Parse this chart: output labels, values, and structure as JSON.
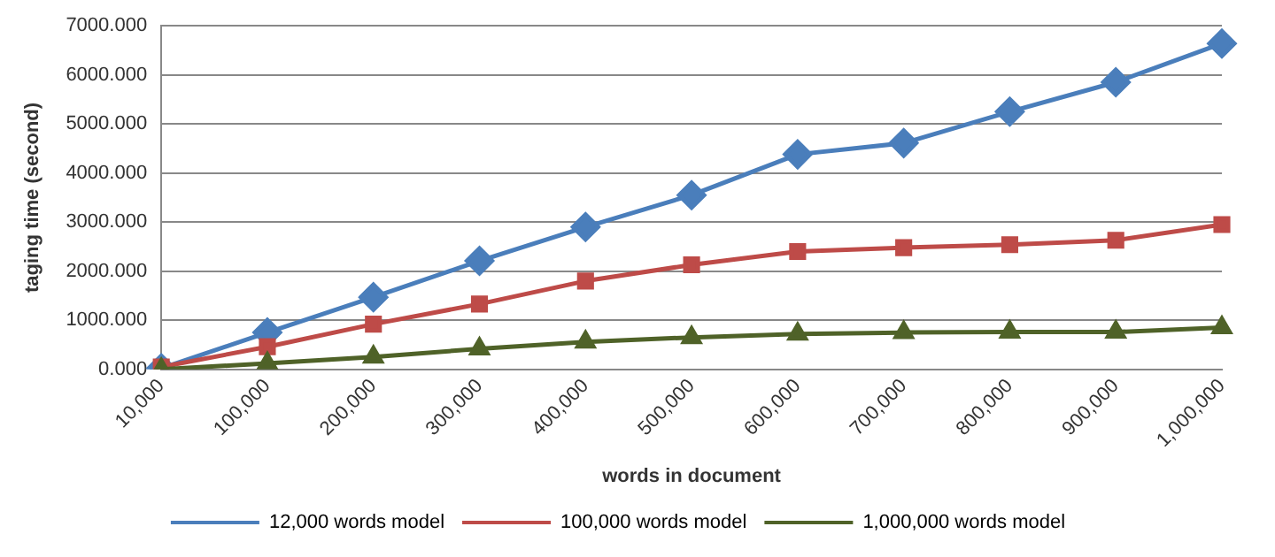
{
  "chart_data": {
    "type": "line",
    "xlabel": "words in document",
    "ylabel": "taging time (second)",
    "categories": [
      "10,000",
      "100,000",
      "200,000",
      "300,000",
      "400,000",
      "500,000",
      "600,000",
      "700,000",
      "800,000",
      "900,000",
      "1,000,000"
    ],
    "ylim": [
      0,
      7000
    ],
    "yticks": [
      {
        "value": 0,
        "label": "0.000"
      },
      {
        "value": 1000,
        "label": "1000.000"
      },
      {
        "value": 2000,
        "label": "2000.000"
      },
      {
        "value": 3000,
        "label": "3000.000"
      },
      {
        "value": 4000,
        "label": "4000.000"
      },
      {
        "value": 5000,
        "label": "5000.000"
      },
      {
        "value": 6000,
        "label": "6000.000"
      },
      {
        "value": 7000,
        "label": "7000.000"
      }
    ],
    "grid": "y",
    "legend": "bottom",
    "line_style": "solid",
    "series": [
      {
        "name": "12,000 words model",
        "color": "#4a7ebb",
        "marker": "diamond",
        "values": [
          20,
          750,
          1470,
          2210,
          2900,
          3550,
          4380,
          4610,
          5250,
          5850,
          6640
        ]
      },
      {
        "name": "100,000 words model",
        "color": "#be4b48",
        "marker": "square",
        "values": [
          50,
          460,
          920,
          1330,
          1800,
          2130,
          2400,
          2480,
          2540,
          2630,
          2950
        ]
      },
      {
        "name": "1,000,000 words model",
        "color": "#4f6228",
        "marker": "triangle",
        "values": [
          0,
          120,
          250,
          420,
          560,
          650,
          720,
          750,
          760,
          760,
          850
        ]
      }
    ]
  }
}
